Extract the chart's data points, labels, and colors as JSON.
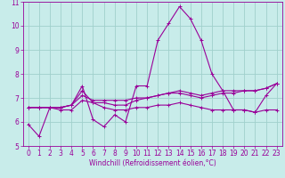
{
  "title": "",
  "xlabel": "Windchill (Refroidissement éolien,°C)",
  "ylabel": "",
  "xlim": [
    -0.5,
    23.5
  ],
  "ylim": [
    5,
    11
  ],
  "yticks": [
    5,
    6,
    7,
    8,
    9,
    10,
    11
  ],
  "xticks": [
    0,
    1,
    2,
    3,
    4,
    5,
    6,
    7,
    8,
    9,
    10,
    11,
    12,
    13,
    14,
    15,
    16,
    17,
    18,
    19,
    20,
    21,
    22,
    23
  ],
  "background_color": "#c8ecea",
  "grid_color": "#a0d0cc",
  "line_color": "#990099",
  "curves": [
    [
      5.9,
      5.4,
      6.6,
      6.6,
      6.7,
      7.5,
      6.1,
      5.8,
      6.3,
      6.0,
      7.5,
      7.5,
      9.4,
      10.1,
      10.8,
      10.3,
      9.4,
      8.0,
      7.3,
      6.5,
      6.5,
      6.4,
      7.1,
      7.6
    ],
    [
      6.6,
      6.6,
      6.6,
      6.6,
      6.7,
      7.3,
      6.8,
      6.8,
      6.7,
      6.7,
      6.9,
      7.0,
      7.1,
      7.2,
      7.3,
      7.2,
      7.1,
      7.2,
      7.3,
      7.3,
      7.3,
      7.3,
      7.4,
      7.6
    ],
    [
      6.6,
      6.6,
      6.6,
      6.6,
      6.7,
      7.1,
      6.9,
      6.9,
      6.9,
      6.9,
      7.0,
      7.0,
      7.1,
      7.2,
      7.2,
      7.1,
      7.0,
      7.1,
      7.2,
      7.2,
      7.3,
      7.3,
      7.4,
      7.6
    ],
    [
      6.6,
      6.6,
      6.6,
      6.5,
      6.5,
      6.9,
      6.8,
      6.6,
      6.5,
      6.5,
      6.6,
      6.6,
      6.7,
      6.7,
      6.8,
      6.7,
      6.6,
      6.5,
      6.5,
      6.5,
      6.5,
      6.4,
      6.5,
      6.5
    ]
  ],
  "xlabel_fontsize": 5.5,
  "tick_fontsize": 5.5
}
